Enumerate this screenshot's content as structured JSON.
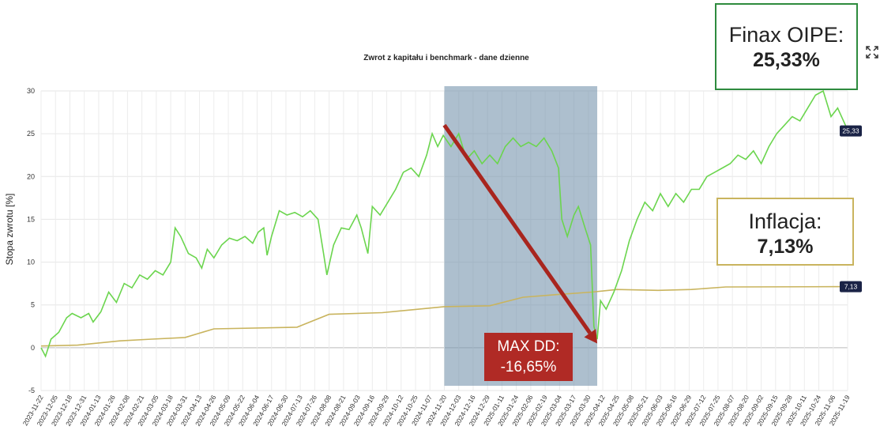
{
  "chart_data": {
    "type": "line",
    "title": "Zwrot z kapitału i benchmark - dane dzienne",
    "ylabel": "Stopa zwrotu [%]",
    "ylim": [
      -5,
      30
    ],
    "yticks": [
      "-5",
      "0",
      "5",
      "10",
      "15",
      "20",
      "25",
      "30"
    ],
    "grid": true,
    "x_tick_labels": [
      "2023-11-22",
      "2023-12-05",
      "2023-12-18",
      "2023-12-31",
      "2024-01-13",
      "2024-01-26",
      "2024-02-08",
      "2024-02-21",
      "2024-03-05",
      "2024-03-18",
      "2024-03-31",
      "2024-04-13",
      "2024-04-26",
      "2024-05-09",
      "2024-05-22",
      "2024-06-04",
      "2024-06-17",
      "2024-06-30",
      "2024-07-13",
      "2024-07-26",
      "2024-08-08",
      "2024-08-21",
      "2024-09-03",
      "2024-09-16",
      "2024-09-29",
      "2024-10-12",
      "2024-10-25",
      "2024-11-07",
      "2024-11-20",
      "2024-12-03",
      "2024-12-16",
      "2024-12-29",
      "2025-01-11",
      "2025-01-24",
      "2025-02-06",
      "2025-02-19",
      "2025-03-04",
      "2025-03-17",
      "2025-03-30",
      "2025-04-12",
      "2025-04-25",
      "2025-05-08",
      "2025-05-21",
      "2025-06-03",
      "2025-06-16",
      "2025-06-29",
      "2025-07-12",
      "2025-07-25",
      "2025-08-07",
      "2025-08-20",
      "2025-09-02",
      "2025-09-15",
      "2025-09-28",
      "2025-10-11",
      "2025-10-24",
      "2025-11-06",
      "2025-11-19"
    ],
    "series": [
      {
        "name": "Finax OIPE",
        "color": "#6bd54e",
        "end_label": "25,33",
        "points": [
          [
            "2023-11-22",
            0
          ],
          [
            "2023-11-26",
            -1.0
          ],
          [
            "2023-12-01",
            1.0
          ],
          [
            "2023-12-08",
            1.8
          ],
          [
            "2023-12-15",
            3.5
          ],
          [
            "2023-12-20",
            4.0
          ],
          [
            "2023-12-28",
            3.5
          ],
          [
            "2024-01-04",
            4.0
          ],
          [
            "2024-01-08",
            3.0
          ],
          [
            "2024-01-15",
            4.2
          ],
          [
            "2024-01-22",
            6.5
          ],
          [
            "2024-01-29",
            5.3
          ],
          [
            "2024-02-05",
            7.5
          ],
          [
            "2024-02-12",
            7.0
          ],
          [
            "2024-02-19",
            8.5
          ],
          [
            "2024-02-26",
            8.0
          ],
          [
            "2024-03-04",
            9.0
          ],
          [
            "2024-03-11",
            8.5
          ],
          [
            "2024-03-18",
            10.0
          ],
          [
            "2024-03-22",
            14.0
          ],
          [
            "2024-03-27",
            13.0
          ],
          [
            "2024-04-03",
            11.0
          ],
          [
            "2024-04-10",
            10.5
          ],
          [
            "2024-04-15",
            9.3
          ],
          [
            "2024-04-20",
            11.5
          ],
          [
            "2024-04-26",
            10.5
          ],
          [
            "2024-05-03",
            12.0
          ],
          [
            "2024-05-10",
            12.8
          ],
          [
            "2024-05-17",
            12.5
          ],
          [
            "2024-05-24",
            13.0
          ],
          [
            "2024-05-31",
            12.2
          ],
          [
            "2024-06-05",
            13.5
          ],
          [
            "2024-06-10",
            14.0
          ],
          [
            "2024-06-13",
            10.8
          ],
          [
            "2024-06-17",
            13.0
          ],
          [
            "2024-06-24",
            16.0
          ],
          [
            "2024-07-01",
            15.5
          ],
          [
            "2024-07-08",
            15.8
          ],
          [
            "2024-07-15",
            15.3
          ],
          [
            "2024-07-22",
            16.0
          ],
          [
            "2024-07-29",
            15.0
          ],
          [
            "2024-08-03",
            11.0
          ],
          [
            "2024-08-06",
            8.5
          ],
          [
            "2024-08-12",
            12.0
          ],
          [
            "2024-08-19",
            14.0
          ],
          [
            "2024-08-26",
            13.8
          ],
          [
            "2024-09-02",
            15.5
          ],
          [
            "2024-09-06",
            14.0
          ],
          [
            "2024-09-12",
            11.0
          ],
          [
            "2024-09-16",
            16.5
          ],
          [
            "2024-09-23",
            15.5
          ],
          [
            "2024-09-30",
            17.0
          ],
          [
            "2024-10-07",
            18.5
          ],
          [
            "2024-10-14",
            20.5
          ],
          [
            "2024-10-21",
            21.0
          ],
          [
            "2024-10-28",
            20.0
          ],
          [
            "2024-11-04",
            22.5
          ],
          [
            "2024-11-09",
            25.0
          ],
          [
            "2024-11-14",
            23.5
          ],
          [
            "2024-11-19",
            24.8
          ],
          [
            "2024-11-26",
            23.5
          ],
          [
            "2024-12-03",
            25.0
          ],
          [
            "2024-12-10",
            22.0
          ],
          [
            "2024-12-17",
            23.0
          ],
          [
            "2024-12-24",
            21.5
          ],
          [
            "2024-12-31",
            22.5
          ],
          [
            "2025-01-07",
            21.5
          ],
          [
            "2025-01-14",
            23.5
          ],
          [
            "2025-01-21",
            24.5
          ],
          [
            "2025-01-28",
            23.5
          ],
          [
            "2025-02-04",
            24.0
          ],
          [
            "2025-02-11",
            23.5
          ],
          [
            "2025-02-18",
            24.5
          ],
          [
            "2025-02-25",
            23.0
          ],
          [
            "2025-03-03",
            21.0
          ],
          [
            "2025-03-06",
            15.0
          ],
          [
            "2025-03-11",
            13.0
          ],
          [
            "2025-03-17",
            15.5
          ],
          [
            "2025-03-21",
            16.5
          ],
          [
            "2025-03-27",
            14.0
          ],
          [
            "2025-04-01",
            12.0
          ],
          [
            "2025-04-04",
            2.5
          ],
          [
            "2025-04-07",
            1.0
          ],
          [
            "2025-04-10",
            5.5
          ],
          [
            "2025-04-15",
            4.5
          ],
          [
            "2025-04-22",
            6.5
          ],
          [
            "2025-04-29",
            9.0
          ],
          [
            "2025-05-06",
            12.5
          ],
          [
            "2025-05-13",
            15.0
          ],
          [
            "2025-05-20",
            17.0
          ],
          [
            "2025-05-27",
            16.0
          ],
          [
            "2025-06-03",
            18.0
          ],
          [
            "2025-06-10",
            16.5
          ],
          [
            "2025-06-17",
            18.0
          ],
          [
            "2025-06-24",
            17.0
          ],
          [
            "2025-07-01",
            18.5
          ],
          [
            "2025-07-08",
            18.5
          ],
          [
            "2025-07-15",
            20.0
          ],
          [
            "2025-07-22",
            20.5
          ],
          [
            "2025-07-29",
            21.0
          ],
          [
            "2025-08-05",
            21.5
          ],
          [
            "2025-08-12",
            22.5
          ],
          [
            "2025-08-19",
            22.0
          ],
          [
            "2025-08-26",
            23.0
          ],
          [
            "2025-09-02",
            21.5
          ],
          [
            "2025-09-09",
            23.5
          ],
          [
            "2025-09-16",
            25.0
          ],
          [
            "2025-09-23",
            26.0
          ],
          [
            "2025-09-30",
            27.0
          ],
          [
            "2025-10-07",
            26.5
          ],
          [
            "2025-10-14",
            28.0
          ],
          [
            "2025-10-21",
            29.5
          ],
          [
            "2025-10-28",
            30.0
          ],
          [
            "2025-11-04",
            27.0
          ],
          [
            "2025-11-10",
            28.0
          ],
          [
            "2025-11-17",
            26.0
          ],
          [
            "2025-11-19",
            25.33
          ]
        ]
      },
      {
        "name": "Inflacja",
        "color": "#c9b45e",
        "end_label": "7,13",
        "points": [
          [
            "2023-11-22",
            0.2
          ],
          [
            "2023-12-25",
            0.3
          ],
          [
            "2024-02-01",
            0.8
          ],
          [
            "2024-03-01",
            1.0
          ],
          [
            "2024-03-31",
            1.2
          ],
          [
            "2024-04-26",
            2.2
          ],
          [
            "2024-07-10",
            2.4
          ],
          [
            "2024-08-08",
            3.9
          ],
          [
            "2024-09-25",
            4.1
          ],
          [
            "2024-11-20",
            4.8
          ],
          [
            "2024-12-31",
            4.9
          ],
          [
            "2025-01-30",
            5.9
          ],
          [
            "2025-03-01",
            6.2
          ],
          [
            "2025-04-02",
            6.5
          ],
          [
            "2025-04-25",
            6.8
          ],
          [
            "2025-06-01",
            6.7
          ],
          [
            "2025-07-01",
            6.8
          ],
          [
            "2025-08-01",
            7.1
          ],
          [
            "2025-11-19",
            7.13
          ]
        ]
      }
    ],
    "shaded_region": {
      "from": "2024-11-20",
      "to": "2025-04-07",
      "color": "#7694ad"
    },
    "arrow": {
      "from": [
        "2024-11-20",
        26
      ],
      "to": [
        "2025-04-07",
        0.5
      ],
      "color": "#a8251e"
    },
    "annotations": {
      "finax_label": "Finax OIPE:",
      "finax_value": "25,33%",
      "inflation_label": "Inflacja:",
      "inflation_value": "7,13%",
      "maxdd_label": "MAX DD:",
      "maxdd_value": "-16,65%"
    }
  },
  "icons": {
    "expand": "expand-icon"
  }
}
